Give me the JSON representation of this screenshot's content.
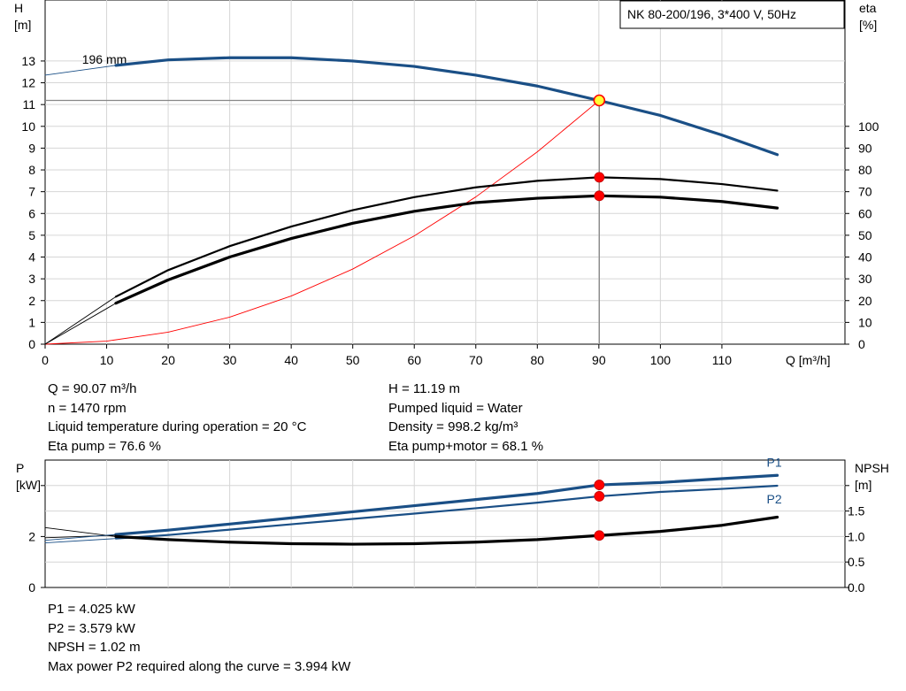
{
  "chart_data": [
    {
      "type": "line",
      "title": "NK 80-200/196, 3*400 V, 50Hz",
      "xlabel": "Q [m³/h]",
      "ylabel": "H\n[m]",
      "y2label": "eta\n[%]",
      "xlim": [
        0,
        130
      ],
      "ylim": [
        0,
        15.8
      ],
      "y2lim": [
        0,
        100
      ],
      "xticks": [
        0,
        10,
        20,
        30,
        40,
        50,
        60,
        70,
        80,
        90,
        100,
        110
      ],
      "yticks": [
        0,
        1,
        2,
        3,
        4,
        5,
        6,
        7,
        8,
        9,
        10,
        11,
        12,
        13
      ],
      "y2ticks": [
        0,
        10,
        20,
        30,
        40,
        50,
        60,
        70,
        80,
        90,
        100
      ],
      "grid": true,
      "annotations": [
        {
          "text": "196 mm",
          "x": 6,
          "y": 13.0
        }
      ],
      "series": [
        {
          "name": "",
          "axis": "H",
          "color": "#1a4f86",
          "style": "thick",
          "x": [
            11.5,
            20,
            30,
            40,
            50,
            60,
            70,
            80,
            90,
            100,
            110,
            119
          ],
          "y": [
            12.8,
            13.05,
            13.15,
            13.15,
            13.0,
            12.75,
            12.35,
            11.85,
            11.19,
            10.5,
            9.6,
            8.7
          ]
        },
        {
          "name": "",
          "axis": "H",
          "color": "#1a4f86",
          "style": "thin",
          "x": [
            0,
            11.5
          ],
          "y": [
            12.35,
            12.8
          ]
        },
        {
          "name": "",
          "axis": "H",
          "color": "#ff0000",
          "style": "thin",
          "x": [
            0,
            10,
            20,
            30,
            40,
            50,
            60,
            70,
            80,
            90.07
          ],
          "y": [
            0,
            0.14,
            0.55,
            1.24,
            2.21,
            3.45,
            4.97,
            6.76,
            8.83,
            11.19
          ]
        },
        {
          "name": "",
          "axis": "eta",
          "color": "#000000",
          "style": "medium",
          "x": [
            11.5,
            20,
            30,
            40,
            50,
            60,
            70,
            80,
            90.07,
            100,
            110,
            119
          ],
          "y": [
            21.8,
            34,
            45,
            54,
            61.5,
            67.5,
            72,
            75,
            76.6,
            75.8,
            73.5,
            70.5
          ]
        },
        {
          "name": "",
          "axis": "eta",
          "color": "#000000",
          "style": "thick",
          "x": [
            11.5,
            20,
            30,
            40,
            50,
            60,
            70,
            80,
            90.07,
            100,
            110,
            119
          ],
          "y": [
            18.8,
            29.5,
            40,
            48.5,
            55.5,
            61,
            65,
            67,
            68.1,
            67.5,
            65.5,
            62.5
          ]
        },
        {
          "name": "",
          "axis": "eta",
          "color": "#000000",
          "style": "thin",
          "x": [
            0,
            11.5
          ],
          "y": [
            0,
            21.8
          ]
        },
        {
          "name": "",
          "axis": "eta",
          "color": "#000000",
          "style": "thin",
          "x": [
            0,
            11.5
          ],
          "y": [
            0,
            18.8
          ]
        }
      ],
      "operating_point": {
        "x": 90.07,
        "y": 11.19
      },
      "markers": [
        {
          "axis": "eta",
          "x": 90.07,
          "y": 76.6
        },
        {
          "axis": "eta",
          "x": 90.07,
          "y": 68.1
        }
      ]
    },
    {
      "type": "line",
      "ylabel": "P\n[kW]",
      "y2label": "NPSH\n[m]",
      "xlim": [
        0,
        130
      ],
      "ylim": [
        0,
        5.0
      ],
      "y2lim": [
        0,
        2.5
      ],
      "yticks": [
        0,
        2
      ],
      "y2ticks": [
        0.0,
        0.5,
        1.0,
        1.5
      ],
      "y2ticklabels": [
        "0.0",
        "0.5",
        "1.0",
        "1.5"
      ],
      "grid": true,
      "series": [
        {
          "name": "P1",
          "axis": "P",
          "color": "#1a4f86",
          "style": "thick",
          "x": [
            11.5,
            20,
            30,
            40,
            50,
            60,
            70,
            80,
            90.07,
            100,
            110,
            119
          ],
          "y": [
            2.08,
            2.25,
            2.49,
            2.73,
            2.97,
            3.21,
            3.45,
            3.69,
            4.025,
            4.12,
            4.27,
            4.4
          ]
        },
        {
          "name": "P2",
          "axis": "P",
          "color": "#1a4f86",
          "style": "medium",
          "x": [
            11.5,
            20,
            30,
            40,
            50,
            60,
            70,
            80,
            90.07,
            100,
            110,
            119
          ],
          "y": [
            1.92,
            2.06,
            2.27,
            2.48,
            2.69,
            2.9,
            3.11,
            3.33,
            3.579,
            3.75,
            3.87,
            3.994
          ]
        },
        {
          "name": "",
          "axis": "NPSH",
          "color": "#000000",
          "style": "thick",
          "x": [
            11.5,
            20,
            30,
            40,
            50,
            60,
            70,
            80,
            90.07,
            100,
            110,
            119
          ],
          "y": [
            1.0,
            0.94,
            0.89,
            0.86,
            0.85,
            0.86,
            0.89,
            0.94,
            1.02,
            1.1,
            1.22,
            1.38
          ]
        },
        {
          "name": "",
          "axis": "P",
          "color": "#000000",
          "style": "thin",
          "x": [
            0,
            11.5
          ],
          "y": [
            2.35,
            2.0
          ]
        },
        {
          "name": "",
          "axis": "P",
          "color": "#000000",
          "style": "thin",
          "x": [
            0,
            11.5
          ],
          "y": [
            1.95,
            2.05
          ]
        },
        {
          "name": "",
          "axis": "P",
          "color": "#1a4f86",
          "style": "thin",
          "x": [
            0,
            11.5
          ],
          "y": [
            1.75,
            1.92
          ]
        },
        {
          "name": "",
          "axis": "P",
          "color": "#1a4f86",
          "style": "thin",
          "x": [
            0,
            11.5
          ],
          "y": [
            1.85,
            2.08
          ]
        }
      ],
      "markers": [
        {
          "axis": "P",
          "x": 90.07,
          "y": 4.025
        },
        {
          "axis": "P",
          "x": 90.07,
          "y": 3.579
        },
        {
          "axis": "NPSH",
          "x": 90.07,
          "y": 1.02
        }
      ]
    }
  ],
  "info_top_left": [
    "Q = 90.07 m³/h",
    "n = 1470 rpm",
    "Liquid temperature during operation = 20 °C",
    "Eta pump = 76.6 %"
  ],
  "info_top_right": [
    "H = 11.19 m",
    "Pumped liquid = Water",
    "Density = 998.2 kg/m³",
    "Eta pump+motor = 68.1 %"
  ],
  "info_bottom": [
    "P1 = 4.025 kW",
    "P2 = 3.579 kW",
    "NPSH = 1.02 m",
    "Max power P2 required along the curve = 3.994 kW"
  ]
}
